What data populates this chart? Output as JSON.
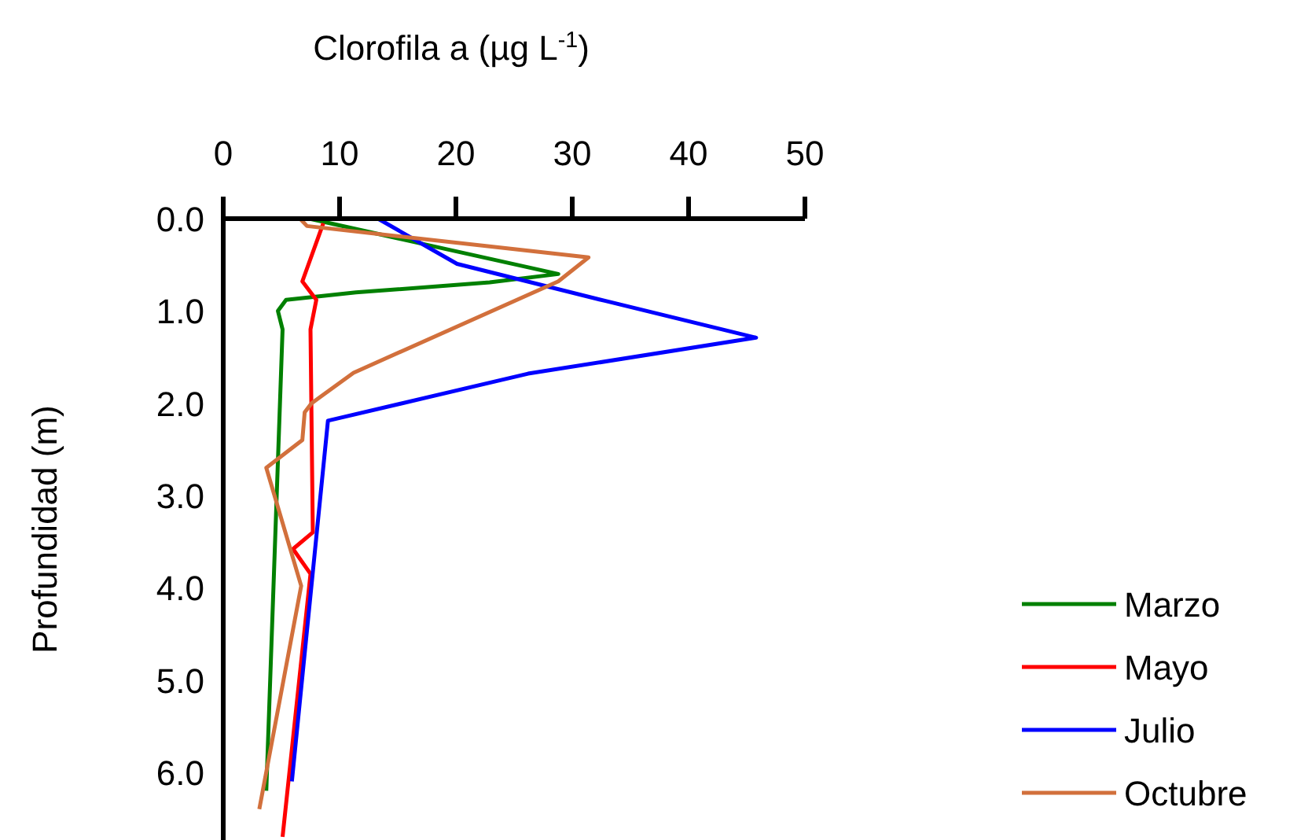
{
  "chart_data": {
    "type": "line",
    "xlabel": "Clorofila a (µg L$^{-1}$)",
    "ylabel": "Profundidad (m)",
    "xlim": [
      0,
      50
    ],
    "xticks": [
      0,
      10,
      20,
      30,
      40,
      50
    ],
    "ylim": [
      6.7,
      0
    ],
    "yticks": [
      {
        "value": 0,
        "label": "0.0"
      },
      {
        "value": 1,
        "label": "1.0"
      },
      {
        "value": 2,
        "label": "2.0"
      },
      {
        "value": 3,
        "label": "3.0"
      },
      {
        "value": 4,
        "label": "4.0"
      },
      {
        "value": 5,
        "label": "5.0"
      },
      {
        "value": 6,
        "label": "6.0"
      }
    ],
    "grid": false,
    "legend": "bottom right",
    "marker": "none",
    "line_style": "solid",
    "series": [
      {
        "name": "Marzo",
        "color": "#008000",
        "x": [
          7.4,
          28.8,
          22.9,
          11.4,
          5.4,
          4.7,
          5.1,
          3.7
        ],
        "values": [
          0,
          0.6,
          0.69,
          0.8,
          0.88,
          1.0,
          1.2,
          6.2
        ]
      },
      {
        "name": "Mayo",
        "color": "#ff0000",
        "x": [
          8.6,
          6.8,
          8.0,
          7.5,
          7.7,
          6.0,
          7.5,
          5.1
        ],
        "values": [
          0.05,
          0.68,
          0.88,
          1.2,
          3.4,
          3.58,
          3.85,
          6.7
        ]
      },
      {
        "name": "Julio",
        "color": "#0000ff",
        "x": [
          13.3,
          20.1,
          32.8,
          45.8,
          26.2,
          9.0,
          5.9
        ],
        "values": [
          0,
          0.49,
          0.89,
          1.29,
          1.68,
          2.19,
          6.1
        ]
      },
      {
        "name": "Octubre",
        "color": "#d2703c",
        "x": [
          6.6,
          7.2,
          31.4,
          28.8,
          11.2,
          7.6,
          7.0,
          6.8,
          3.7,
          6.7,
          3.1
        ],
        "values": [
          0,
          0.08,
          0.42,
          0.68,
          1.67,
          2.0,
          2.1,
          2.4,
          2.7,
          3.98,
          6.4
        ]
      }
    ]
  }
}
